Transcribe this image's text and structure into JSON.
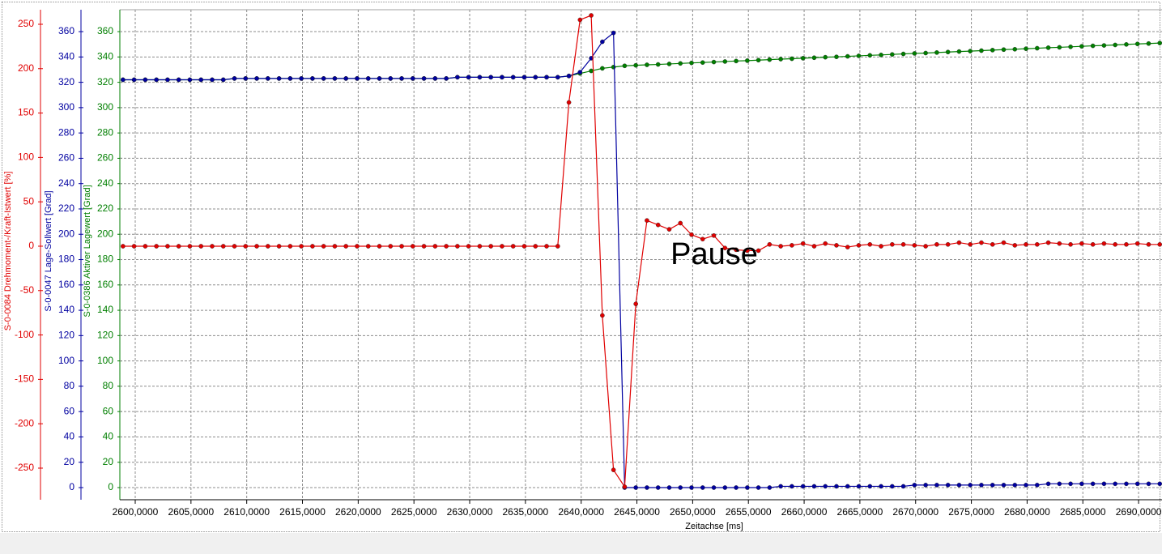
{
  "chart_data": {
    "type": "line",
    "annotation": "Pause",
    "xlabel": "Zeitachse [ms]",
    "ylabel": "S-0-0084 Drehmoment-/Kraft-Istwert [%]",
    "y2label": "S-0-0047 Lage-Sollwert [Grad]",
    "y3label": "S-0-0386 Aktiver Lagewert [Grad]",
    "xlim": [
      2598.62,
      2692.1
    ],
    "xticks": [
      {
        "value": 2600,
        "label": "2600,0000"
      },
      {
        "value": 2605,
        "label": "2605,0000"
      },
      {
        "value": 2610,
        "label": "2610,0000"
      },
      {
        "value": 2615,
        "label": "2615,0000"
      },
      {
        "value": 2620,
        "label": "2620,0000"
      },
      {
        "value": 2625,
        "label": "2625,0000"
      },
      {
        "value": 2630,
        "label": "2630,0000"
      },
      {
        "value": 2635,
        "label": "2635,0000"
      },
      {
        "value": 2640,
        "label": "2640,0000"
      },
      {
        "value": 2645,
        "label": "2645,0000"
      },
      {
        "value": 2650,
        "label": "2650,0000"
      },
      {
        "value": 2655,
        "label": "2655,0000"
      },
      {
        "value": 2660,
        "label": "2660,0000"
      },
      {
        "value": 2665,
        "label": "2665,0000"
      },
      {
        "value": 2670,
        "label": "2670,0000"
      },
      {
        "value": 2675,
        "label": "2675,0000"
      },
      {
        "value": 2680,
        "label": "2680,0000"
      },
      {
        "value": 2685,
        "label": "2685,0000"
      },
      {
        "value": 2690,
        "label": "2690,0000"
      }
    ],
    "ylim": [
      -285.6,
      266.4
    ],
    "yticks": [
      -250,
      -200,
      -150,
      -100,
      -50,
      0,
      50,
      100,
      150,
      200,
      250
    ],
    "y2lim": [
      -9.6,
      377.3
    ],
    "y2ticks": [
      0,
      20,
      40,
      60,
      80,
      100,
      120,
      140,
      160,
      180,
      200,
      220,
      240,
      260,
      280,
      300,
      320,
      340,
      360
    ],
    "y3lim": [
      -9.6,
      377.3
    ],
    "y3ticks": [
      0,
      20,
      40,
      60,
      80,
      100,
      120,
      140,
      160,
      180,
      200,
      220,
      240,
      260,
      280,
      300,
      320,
      340,
      360
    ],
    "grid": true,
    "grid_axis": "y3",
    "x": [
      2598.9,
      2599.9,
      2600.9,
      2601.9,
      2602.9,
      2603.9,
      2604.9,
      2605.9,
      2606.9,
      2607.9,
      2608.9,
      2609.9,
      2610.9,
      2611.9,
      2612.9,
      2613.9,
      2614.9,
      2615.9,
      2616.9,
      2617.9,
      2618.9,
      2619.9,
      2620.9,
      2621.9,
      2622.9,
      2623.9,
      2624.9,
      2625.9,
      2626.9,
      2627.9,
      2628.9,
      2629.9,
      2630.9,
      2631.9,
      2632.9,
      2633.9,
      2634.9,
      2635.9,
      2636.9,
      2637.9,
      2638.9,
      2639.9,
      2640.9,
      2641.9,
      2642.9,
      2643.9,
      2644.9,
      2645.9,
      2646.9,
      2647.9,
      2648.9,
      2649.9,
      2650.9,
      2651.9,
      2652.9,
      2653.9,
      2654.9,
      2655.9,
      2656.9,
      2657.9,
      2658.9,
      2659.9,
      2660.9,
      2661.9,
      2662.9,
      2663.9,
      2664.9,
      2665.9,
      2666.9,
      2667.9,
      2668.9,
      2669.9,
      2670.9,
      2671.9,
      2672.9,
      2673.9,
      2674.9,
      2675.9,
      2676.9,
      2677.9,
      2678.9,
      2679.9,
      2680.9,
      2681.9,
      2682.9,
      2683.9,
      2684.9,
      2685.9,
      2686.9,
      2687.9,
      2688.9,
      2689.9,
      2690.9,
      2691.9
    ],
    "series": [
      {
        "name": "S-0-0084 Drehmoment-/Kraft-Istwert [%]",
        "color": "#e00000",
        "axis": "y",
        "values": [
          0,
          0,
          0,
          0,
          0,
          0,
          0,
          0,
          0,
          0,
          0,
          0,
          0,
          0,
          0,
          0,
          0,
          0,
          0,
          0,
          0,
          0,
          0,
          0,
          0,
          0,
          0,
          0,
          0,
          0,
          0,
          0,
          0,
          0,
          0,
          0,
          0,
          0,
          0,
          0,
          162,
          255,
          260,
          -78,
          -252,
          -271,
          -65,
          29,
          24,
          19,
          26,
          13,
          8,
          12,
          -2,
          -4,
          -5,
          -5,
          2,
          0,
          1,
          3,
          0,
          3,
          1,
          -1,
          1,
          2,
          0,
          2,
          2,
          1,
          0,
          2,
          2,
          4,
          2,
          4,
          2,
          4,
          1,
          2,
          2,
          4,
          3,
          2,
          3,
          2,
          3,
          2,
          2,
          3,
          2,
          2
        ]
      },
      {
        "name": "S-0-0047 Lage-Sollwert [Grad]",
        "color": "#0000a0",
        "axis": "y2",
        "values": [
          322,
          322,
          322,
          322,
          322,
          322,
          322,
          322,
          322,
          322,
          323,
          323,
          323,
          323,
          323,
          323,
          323,
          323,
          323,
          323,
          323,
          323,
          323,
          323,
          323,
          323,
          323,
          323,
          323,
          323,
          324,
          324,
          324,
          324,
          324,
          324,
          324,
          324,
          324,
          324,
          325,
          328,
          339,
          352,
          359,
          0,
          0,
          0,
          0,
          0,
          0,
          0,
          0,
          0,
          0,
          0,
          0,
          0,
          0,
          1,
          1,
          1,
          1,
          1,
          1,
          1,
          1,
          1,
          1,
          1,
          1,
          2,
          2,
          2,
          2,
          2,
          2,
          2,
          2,
          2,
          2,
          2,
          2,
          3,
          3,
          3,
          3,
          3,
          3,
          3,
          3,
          3,
          3,
          3
        ]
      },
      {
        "name": "S-0-0386 Aktiver Lagewert [Grad]",
        "color": "#007f00",
        "axis": "y3",
        "values": [
          322,
          322,
          322,
          322,
          322,
          322,
          322,
          322,
          322,
          322,
          323,
          323,
          323,
          323,
          323,
          323,
          323,
          323,
          323,
          323,
          323,
          323,
          323,
          323,
          323,
          323,
          323,
          323,
          323,
          323,
          324,
          324,
          324,
          324,
          324,
          324,
          324,
          324,
          324,
          324,
          325,
          327,
          329,
          331,
          332,
          333.0,
          333.4,
          333.8,
          334.1,
          334.5,
          334.9,
          335.3,
          335.6,
          336.0,
          336.4,
          336.8,
          337.1,
          337.5,
          337.9,
          338.3,
          338.6,
          339.0,
          339.4,
          339.8,
          340.1,
          340.5,
          340.9,
          341.3,
          341.6,
          342.0,
          342.4,
          342.8,
          343.1,
          343.5,
          343.9,
          344.3,
          344.6,
          345.0,
          345.4,
          345.8,
          346.1,
          346.5,
          346.9,
          347.3,
          347.6,
          348.0,
          348.4,
          348.8,
          349.1,
          349.5,
          349.9,
          350.3,
          350.6,
          351.0
        ]
      }
    ]
  }
}
